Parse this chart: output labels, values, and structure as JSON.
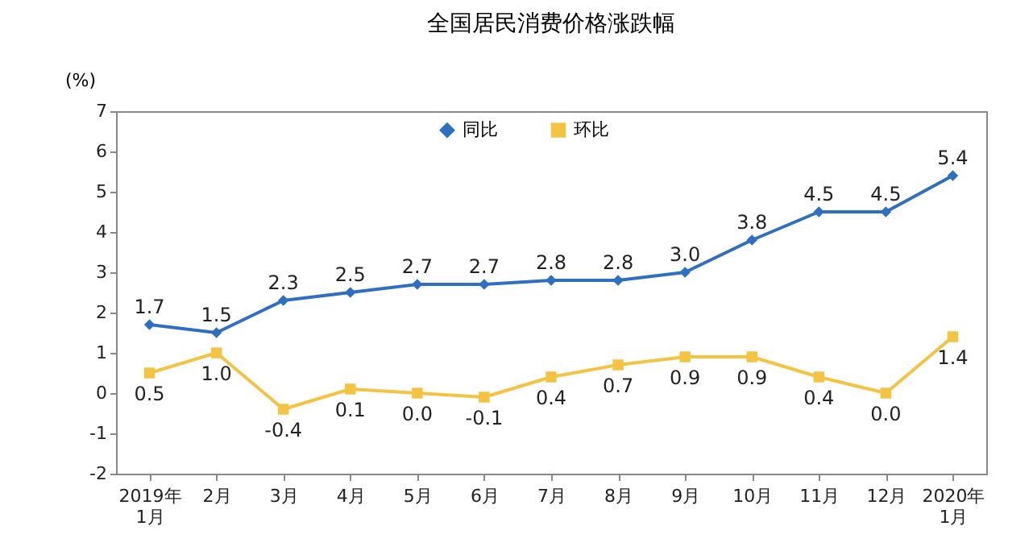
{
  "chart_data": {
    "type": "line",
    "title": "全国居民消费价格涨跌幅",
    "ylabel": "(%)",
    "categories": [
      "2019年\n1月",
      "2月",
      "3月",
      "4月",
      "5月",
      "6月",
      "7月",
      "8月",
      "9月",
      "10月",
      "11月",
      "12月",
      "2020年\n1月"
    ],
    "series": [
      {
        "name": "同比",
        "color": "#2e6fc4",
        "marker": "diamond",
        "values": [
          1.7,
          1.5,
          2.3,
          2.5,
          2.7,
          2.7,
          2.8,
          2.8,
          3.0,
          3.8,
          4.5,
          4.5,
          5.4
        ],
        "value_labels": [
          "1.7",
          "1.5",
          "2.3",
          "2.5",
          "2.7",
          "2.7",
          "2.8",
          "2.8",
          "3.0",
          "3.8",
          "4.5",
          "4.5",
          "5.4"
        ]
      },
      {
        "name": "环比",
        "color": "#f5c342",
        "marker": "square",
        "values": [
          0.5,
          1.0,
          -0.4,
          0.1,
          0.0,
          -0.1,
          0.4,
          0.7,
          0.9,
          0.9,
          0.4,
          0.0,
          1.4
        ],
        "value_labels": [
          "0.5",
          "1.0",
          "-0.4",
          "0.1",
          "0.0",
          "-0.1",
          "0.4",
          "0.7",
          "0.9",
          "0.9",
          "0.4",
          "0.0",
          "1.4"
        ]
      }
    ],
    "ylim": [
      -2,
      7
    ],
    "yticks": [
      -2,
      -1,
      0,
      1,
      2,
      3,
      4,
      5,
      6,
      7
    ],
    "grid": false,
    "legend": "top"
  }
}
